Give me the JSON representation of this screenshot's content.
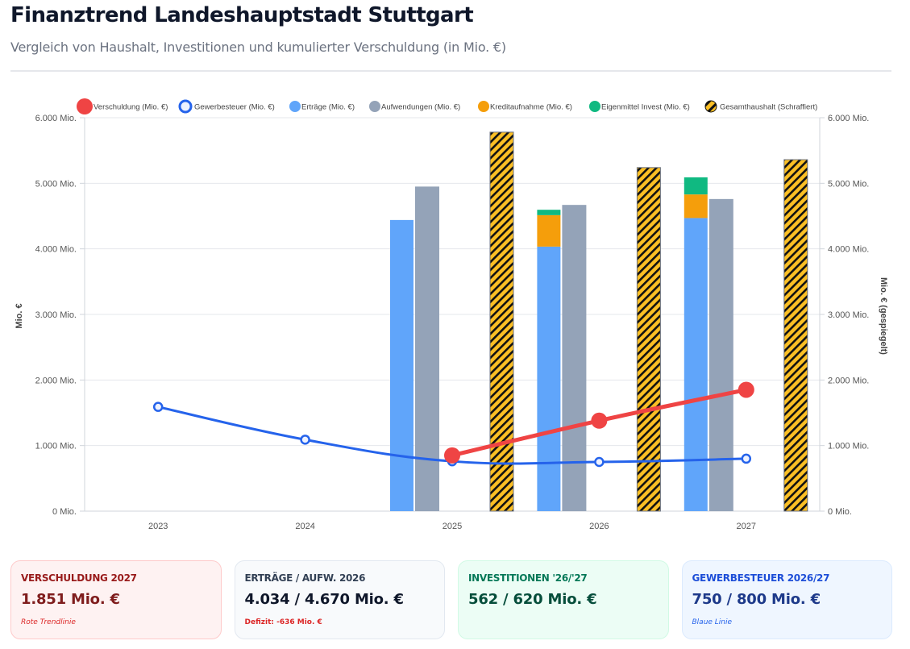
{
  "header": {
    "title": "Finanztrend Landeshauptstadt Stuttgart",
    "subtitle": "Vergleich von Haushalt, Investitionen und kumulierter Verschuldung (in Mio. €)"
  },
  "colors": {
    "verschuldung": "#ef4444",
    "gewerbesteuer": "#2563eb",
    "ertraege": "#60a5fa",
    "aufwendungen": "#94a3b8",
    "kredit": "#f59e0b",
    "eigenmittel": "#10b981",
    "hatch_bg": "#fbbf24",
    "hatch_stripe": "#111111"
  },
  "chart_data": {
    "type": "bar",
    "title": "",
    "categories": [
      "2023",
      "2024",
      "2025",
      "2026",
      "2027"
    ],
    "ylabel": "Mio. €",
    "ylabel_right": "Mio. € (gespiegelt)",
    "ylim": [
      0,
      6000
    ],
    "yticks": [
      0,
      1000,
      2000,
      3000,
      4000,
      5000,
      6000
    ],
    "ytick_labels": [
      "0 Mio.",
      "1.000 Mio.",
      "2.000 Mio.",
      "3.000 Mio.",
      "4.000 Mio.",
      "5.000 Mio.",
      "6.000 Mio."
    ],
    "grid": true,
    "legend_position": "top",
    "legend": [
      {
        "key": "verschuldung",
        "label": "Verschuldung (Mio. €)",
        "marker": "dot"
      },
      {
        "key": "gewerbesteuer",
        "label": "Gewerbesteuer (Mio. €)",
        "marker": "ring"
      },
      {
        "key": "ertraege",
        "label": "Erträge (Mio. €)",
        "marker": "dot"
      },
      {
        "key": "aufwendungen",
        "label": "Aufwendungen (Mio. €)",
        "marker": "dot"
      },
      {
        "key": "kredit",
        "label": "Kreditaufnahme (Mio. €)",
        "marker": "dot"
      },
      {
        "key": "eigenmittel",
        "label": "Eigenmittel Invest (Mio. €)",
        "marker": "dot"
      },
      {
        "key": "gesamt",
        "label": "Gesamthaushalt (Schraffiert)",
        "marker": "hatch"
      }
    ],
    "series": [
      {
        "name": "Erträge (Mio. €)",
        "key": "ertraege",
        "type": "bar",
        "stack": "A",
        "values": [
          null,
          null,
          4440,
          4034,
          4470
        ]
      },
      {
        "name": "Kreditaufnahme (Mio. €)",
        "key": "kredit",
        "type": "bar",
        "stack": "A",
        "values": [
          null,
          null,
          null,
          480,
          360
        ]
      },
      {
        "name": "Eigenmittel Invest (Mio. €)",
        "key": "eigenmittel",
        "type": "bar",
        "stack": "A",
        "values": [
          null,
          null,
          null,
          82,
          260
        ]
      },
      {
        "name": "Aufwendungen (Mio. €)",
        "key": "aufwendungen",
        "type": "bar",
        "stack": "B",
        "values": [
          null,
          null,
          4950,
          4670,
          4760
        ]
      },
      {
        "name": "Gesamthaushalt (Schraffiert)",
        "key": "gesamt",
        "type": "bar",
        "stack": "C",
        "values": [
          null,
          null,
          5780,
          5240,
          5360
        ]
      },
      {
        "name": "Verschuldung (Mio. €)",
        "key": "verschuldung",
        "type": "line",
        "values": [
          null,
          null,
          850,
          1380,
          1851
        ]
      },
      {
        "name": "Gewerbesteuer (Mio. €)",
        "key": "gewerbesteuer",
        "type": "line",
        "values": [
          1590,
          1090,
          760,
          750,
          800
        ]
      }
    ]
  },
  "cards": [
    {
      "label": "Verschuldung 2027",
      "value": "1.851 Mio. €",
      "note": "Rote Trendlinie"
    },
    {
      "label": "Erträge / Aufw. 2026",
      "value": "4.034 / 4.670 Mio. €",
      "note": "Defizit: -636 Mio. €"
    },
    {
      "label": "Investitionen '26/'27",
      "value": "562 / 620 Mio. €",
      "note": ""
    },
    {
      "label": "Gewerbesteuer 2026/27",
      "value": "750 / 800 Mio. €",
      "note": "Blaue Linie"
    }
  ]
}
